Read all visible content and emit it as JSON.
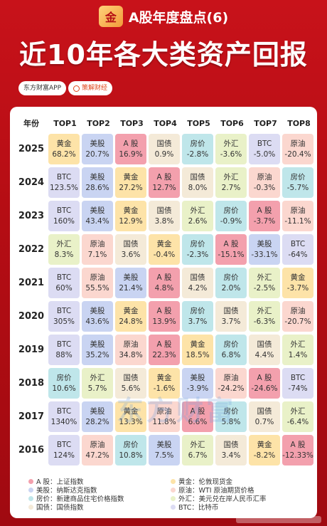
{
  "header": {
    "logo_text": "金",
    "series": "A股年度盘点(6)",
    "title": "近10年各大类资产回报",
    "tags": [
      "东方财富APP",
      "策解财经"
    ]
  },
  "colors": {
    "A": "#f3a0ad",
    "H": "#fde3a8",
    "N": "#c9d4f2",
    "F": "#bfe6ea",
    "O": "#fbd7cf",
    "X": "#e9f1c8",
    "G": "#f4ead8",
    "B": "#dcdcf3"
  },
  "table": {
    "year_header": "年份",
    "columns": [
      "TOP1",
      "TOP2",
      "TOP3",
      "TOP4",
      "TOP5",
      "TOP6",
      "TOP7",
      "TOP8"
    ],
    "rows": [
      {
        "year": "2025",
        "cells": [
          {
            "k": "H",
            "name": "黄金",
            "val": "68.2%"
          },
          {
            "k": "N",
            "name": "美股",
            "val": "20.7%"
          },
          {
            "k": "A",
            "name": "A 股",
            "val": "16.9%"
          },
          {
            "k": "G",
            "name": "国债",
            "val": "0.9%"
          },
          {
            "k": "F",
            "name": "房价",
            "val": "-2.8%"
          },
          {
            "k": "X",
            "name": "外汇",
            "val": "-3.6%"
          },
          {
            "k": "B",
            "name": "BTC",
            "val": "-5.0%"
          },
          {
            "k": "O",
            "name": "原油",
            "val": "-20.4%"
          }
        ]
      },
      {
        "year": "2024",
        "cells": [
          {
            "k": "B",
            "name": "BTC",
            "val": "123.5%"
          },
          {
            "k": "N",
            "name": "美股",
            "val": "28.6%"
          },
          {
            "k": "H",
            "name": "黄金",
            "val": "27.2%"
          },
          {
            "k": "A",
            "name": "A 股",
            "val": "12.7%"
          },
          {
            "k": "G",
            "name": "国债",
            "val": "8.0%"
          },
          {
            "k": "X",
            "name": "外汇",
            "val": "2.7%"
          },
          {
            "k": "O",
            "name": "原油",
            "val": "-0.3%"
          },
          {
            "k": "F",
            "name": "房价",
            "val": "-5.7%"
          }
        ]
      },
      {
        "year": "2023",
        "cells": [
          {
            "k": "B",
            "name": "BTC",
            "val": "160%"
          },
          {
            "k": "N",
            "name": "美股",
            "val": "43.4%"
          },
          {
            "k": "H",
            "name": "黄金",
            "val": "12.9%"
          },
          {
            "k": "G",
            "name": "国债",
            "val": "3.8%"
          },
          {
            "k": "X",
            "name": "外汇",
            "val": "2.6%"
          },
          {
            "k": "F",
            "name": "房价",
            "val": "-0.9%"
          },
          {
            "k": "A",
            "name": "A 股",
            "val": "-3.7%"
          },
          {
            "k": "O",
            "name": "原油",
            "val": "-11.1%"
          }
        ]
      },
      {
        "year": "2022",
        "cells": [
          {
            "k": "X",
            "name": "外汇",
            "val": "8.3%"
          },
          {
            "k": "O",
            "name": "原油",
            "val": "7.1%"
          },
          {
            "k": "G",
            "name": "国债",
            "val": "3.6%"
          },
          {
            "k": "H",
            "name": "黄金",
            "val": "-0.4%"
          },
          {
            "k": "F",
            "name": "房价",
            "val": "-2.3%"
          },
          {
            "k": "A",
            "name": "A 股",
            "val": "-15.1%"
          },
          {
            "k": "N",
            "name": "美股",
            "val": "-33.1%"
          },
          {
            "k": "B",
            "name": "BTC",
            "val": "-64%"
          }
        ]
      },
      {
        "year": "2021",
        "cells": [
          {
            "k": "B",
            "name": "BTC",
            "val": "60%"
          },
          {
            "k": "O",
            "name": "原油",
            "val": "55.5%"
          },
          {
            "k": "N",
            "name": "美股",
            "val": "21.4%"
          },
          {
            "k": "A",
            "name": "A 股",
            "val": "4.8%"
          },
          {
            "k": "G",
            "name": "国债",
            "val": "4.2%"
          },
          {
            "k": "F",
            "name": "房价",
            "val": "2.0%"
          },
          {
            "k": "X",
            "name": "外汇",
            "val": "-2.5%"
          },
          {
            "k": "H",
            "name": "黄金",
            "val": "-3.7%"
          }
        ]
      },
      {
        "year": "2020",
        "cells": [
          {
            "k": "B",
            "name": "BTC",
            "val": "305%"
          },
          {
            "k": "N",
            "name": "美股",
            "val": "43.6%"
          },
          {
            "k": "H",
            "name": "黄金",
            "val": "24.8%"
          },
          {
            "k": "A",
            "name": "A 股",
            "val": "13.9%"
          },
          {
            "k": "F",
            "name": "房价",
            "val": "3.7%"
          },
          {
            "k": "G",
            "name": "国债",
            "val": "3.7%"
          },
          {
            "k": "X",
            "name": "外汇",
            "val": "-6.3%"
          },
          {
            "k": "O",
            "name": "原油",
            "val": "-20.7%"
          }
        ]
      },
      {
        "year": "2019",
        "cells": [
          {
            "k": "B",
            "name": "BTC",
            "val": "88%"
          },
          {
            "k": "N",
            "name": "美股",
            "val": "35.2%"
          },
          {
            "k": "O",
            "name": "原油",
            "val": "34.8%"
          },
          {
            "k": "A",
            "name": "A 股",
            "val": "22.3%"
          },
          {
            "k": "H",
            "name": "黄金",
            "val": "18.5%"
          },
          {
            "k": "F",
            "name": "房价",
            "val": "6.8%"
          },
          {
            "k": "G",
            "name": "国债",
            "val": "4.4%"
          },
          {
            "k": "X",
            "name": "外汇",
            "val": "1.4%"
          }
        ]
      },
      {
        "year": "2018",
        "cells": [
          {
            "k": "F",
            "name": "房价",
            "val": "10.6%"
          },
          {
            "k": "X",
            "name": "外汇",
            "val": "5.7%"
          },
          {
            "k": "G",
            "name": "国债",
            "val": "5.6%"
          },
          {
            "k": "H",
            "name": "黄金",
            "val": "-1.6%"
          },
          {
            "k": "N",
            "name": "美股",
            "val": "-3.9%"
          },
          {
            "k": "O",
            "name": "原油",
            "val": "-24.2%"
          },
          {
            "k": "A",
            "name": "A 股",
            "val": "-24.6%"
          },
          {
            "k": "B",
            "name": "BTC",
            "val": "-74%"
          }
        ]
      },
      {
        "year": "2017",
        "cells": [
          {
            "k": "B",
            "name": "BTC",
            "val": "1340%"
          },
          {
            "k": "N",
            "name": "美股",
            "val": "28.2%"
          },
          {
            "k": "H",
            "name": "黄金",
            "val": "13.3%"
          },
          {
            "k": "O",
            "name": "原油",
            "val": "11.8%"
          },
          {
            "k": "A",
            "name": "A 股",
            "val": "6.6%"
          },
          {
            "k": "F",
            "name": "房价",
            "val": "5.8%"
          },
          {
            "k": "G",
            "name": "国债",
            "val": "0.7%"
          },
          {
            "k": "X",
            "name": "外汇",
            "val": "-6.4%"
          }
        ]
      },
      {
        "year": "2016",
        "cells": [
          {
            "k": "B",
            "name": "BTC",
            "val": "124%"
          },
          {
            "k": "O",
            "name": "原油",
            "val": "47.2%"
          },
          {
            "k": "F",
            "name": "房价",
            "val": "10.8%"
          },
          {
            "k": "N",
            "name": "美股",
            "val": "7.5%"
          },
          {
            "k": "X",
            "name": "外汇",
            "val": "6.7%"
          },
          {
            "k": "G",
            "name": "国债",
            "val": "3.4%"
          },
          {
            "k": "H",
            "name": "黄金",
            "val": "-8.2%"
          },
          {
            "k": "A",
            "name": "A 股",
            "val": "-12.33%"
          }
        ]
      }
    ]
  },
  "legend": [
    [
      {
        "k": "A",
        "text": "A 股：上证指数"
      },
      {
        "k": "H",
        "text": "黄金：伦敦现货金"
      }
    ],
    [
      {
        "k": "N",
        "text": "美股：纳斯达克指数"
      },
      {
        "k": "O",
        "text": "原油：WTI 原油期货价格"
      }
    ],
    [
      {
        "k": "F",
        "text": "房价：新建商品住宅价格指数"
      },
      {
        "k": "X",
        "text": "外汇：美元兑在岸人民币汇率"
      }
    ],
    [
      {
        "k": "G",
        "text": "国债：国债指数"
      },
      {
        "k": "B",
        "text": "BTC：比特币"
      }
    ]
  ],
  "watermark": "东方财富"
}
